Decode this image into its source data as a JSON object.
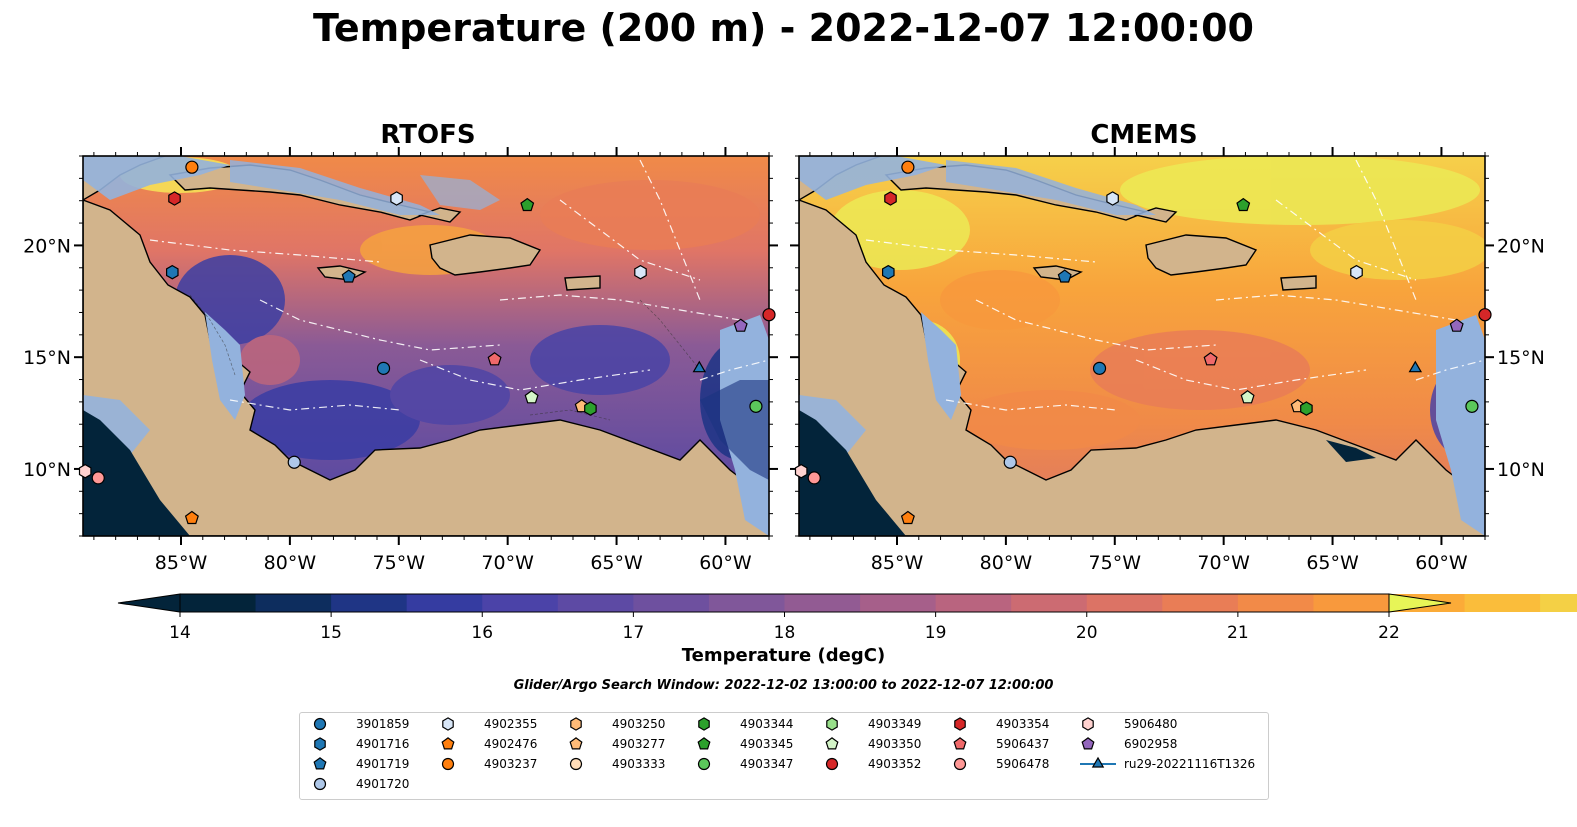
{
  "title": "Temperature (200 m) - 2022-12-07 12:00:00",
  "panels": [
    {
      "id": "rtofs",
      "title": "RTOFS"
    },
    {
      "id": "cmems",
      "title": "CMEMS"
    }
  ],
  "map": {
    "lon_range": [
      -89.5,
      -58.0
    ],
    "lat_range": [
      7.0,
      24.0
    ],
    "lon_ticks": [
      {
        "value": -85,
        "label": "85°W"
      },
      {
        "value": -80,
        "label": "80°W"
      },
      {
        "value": -75,
        "label": "75°W"
      },
      {
        "value": -70,
        "label": "70°W"
      },
      {
        "value": -65,
        "label": "65°W"
      },
      {
        "value": -60,
        "label": "60°W"
      }
    ],
    "lat_ticks": [
      {
        "value": 10,
        "label": "10°N"
      },
      {
        "value": 15,
        "label": "15°N"
      },
      {
        "value": 20,
        "label": "20°N"
      }
    ],
    "colors": {
      "land": "#d2b48c",
      "shelf": "#93b2dd",
      "coast": "#000000",
      "eez": "#ffffff"
    }
  },
  "colorbar": {
    "title": "Temperature (degC)",
    "min": 14,
    "max": 22,
    "step": 0.5,
    "ticks": [
      14,
      15,
      16,
      17,
      18,
      19,
      20,
      21,
      22
    ],
    "tick_labels": [
      "14",
      "15",
      "16",
      "17",
      "18",
      "19",
      "20",
      "21",
      "22"
    ],
    "colors": [
      "#03243a",
      "#0d2d5e",
      "#1f3585",
      "#353ca1",
      "#4b43a8",
      "#5d4aa4",
      "#6e509f",
      "#80579a",
      "#925b93",
      "#a65f8a",
      "#b9647f",
      "#cc6b72",
      "#dc7365",
      "#e97d56",
      "#f28a48",
      "#f8993d",
      "#fbab38",
      "#fabd3b",
      "#f4d045",
      "#ecea55"
    ],
    "extend_low_color": "#03243a",
    "extend_high_color": "#e7f557"
  },
  "search_window": "Glider/Argo Search Window: 2022-12-02 13:00:00 to 2022-12-07 12:00:00",
  "legend": [
    {
      "label": "3901859",
      "marker": "circle",
      "color": "#1f77b4"
    },
    {
      "label": "4901716",
      "marker": "hexagon",
      "color": "#1f77b4"
    },
    {
      "label": "4901719",
      "marker": "pentagon",
      "color": "#1f77b4"
    },
    {
      "label": "4901720",
      "marker": "circle",
      "color": "#aec7e8"
    },
    {
      "label": "4902355",
      "marker": "hexagon",
      "color": "#d8e6f7"
    },
    {
      "label": "4902476",
      "marker": "pentagon",
      "color": "#ff7f0e"
    },
    {
      "label": "4903237",
      "marker": "circle",
      "color": "#ff7f0e"
    },
    {
      "label": "4903250",
      "marker": "hexagon",
      "color": "#ffbb78"
    },
    {
      "label": "4903277",
      "marker": "pentagon",
      "color": "#ffbb78"
    },
    {
      "label": "4903333",
      "marker": "circle",
      "color": "#ffdcb8"
    },
    {
      "label": "4903344",
      "marker": "hexagon",
      "color": "#2ca02c"
    },
    {
      "label": "4903345",
      "marker": "pentagon",
      "color": "#2ca02c"
    },
    {
      "label": "4903347",
      "marker": "circle",
      "color": "#5bc75b"
    },
    {
      "label": "4903349",
      "marker": "hexagon",
      "color": "#98df8a"
    },
    {
      "label": "4903350",
      "marker": "pentagon",
      "color": "#d4f5c8"
    },
    {
      "label": "4903352",
      "marker": "circle",
      "color": "#d62728"
    },
    {
      "label": "4903354",
      "marker": "hexagon",
      "color": "#d62728"
    },
    {
      "label": "5906437",
      "marker": "pentagon",
      "color": "#f0696a"
    },
    {
      "label": "5906478",
      "marker": "circle",
      "color": "#ff9896"
    },
    {
      "label": "5906480",
      "marker": "hexagon",
      "color": "#ffd2d0"
    },
    {
      "label": "6902958",
      "marker": "pentagon",
      "color": "#9467bd"
    },
    {
      "label": "ru29-20221116T1326",
      "marker": "triangle",
      "color": "#1f77b4",
      "line": true
    }
  ],
  "observations": [
    {
      "id": "4903237",
      "lon": -84.5,
      "lat": 23.5
    },
    {
      "id": "4903354",
      "lon": -85.3,
      "lat": 22.1
    },
    {
      "id": "4902355",
      "lon": -75.1,
      "lat": 22.1
    },
    {
      "id": "4903345",
      "lon": -69.1,
      "lat": 21.8
    },
    {
      "id": "4901716",
      "lon": -85.4,
      "lat": 18.8
    },
    {
      "id": "4901719",
      "lon": -77.3,
      "lat": 18.6
    },
    {
      "id": "4902355",
      "lon": -63.9,
      "lat": 18.8
    },
    {
      "id": "6902958",
      "lon": -59.3,
      "lat": 16.4
    },
    {
      "id": "5906437",
      "lon": -70.6,
      "lat": 14.9
    },
    {
      "id": "3901859",
      "lon": -75.7,
      "lat": 14.5
    },
    {
      "id": "ru29-20221116T1326",
      "lon": -61.2,
      "lat": 14.5
    },
    {
      "id": "4903350",
      "lon": -68.9,
      "lat": 13.2
    },
    {
      "id": "4903277",
      "lon": -66.6,
      "lat": 12.8
    },
    {
      "id": "4903344",
      "lon": -66.2,
      "lat": 12.7
    },
    {
      "id": "4903347",
      "lon": -58.6,
      "lat": 12.8
    },
    {
      "id": "4901720",
      "lon": -79.8,
      "lat": 10.3
    },
    {
      "id": "5906480",
      "lon": -89.4,
      "lat": 9.9
    },
    {
      "id": "5906478",
      "lon": -88.8,
      "lat": 9.6
    },
    {
      "id": "4902476",
      "lon": -84.5,
      "lat": 7.8
    },
    {
      "id": "4903352",
      "lon": -58.0,
      "lat": 16.9
    }
  ]
}
